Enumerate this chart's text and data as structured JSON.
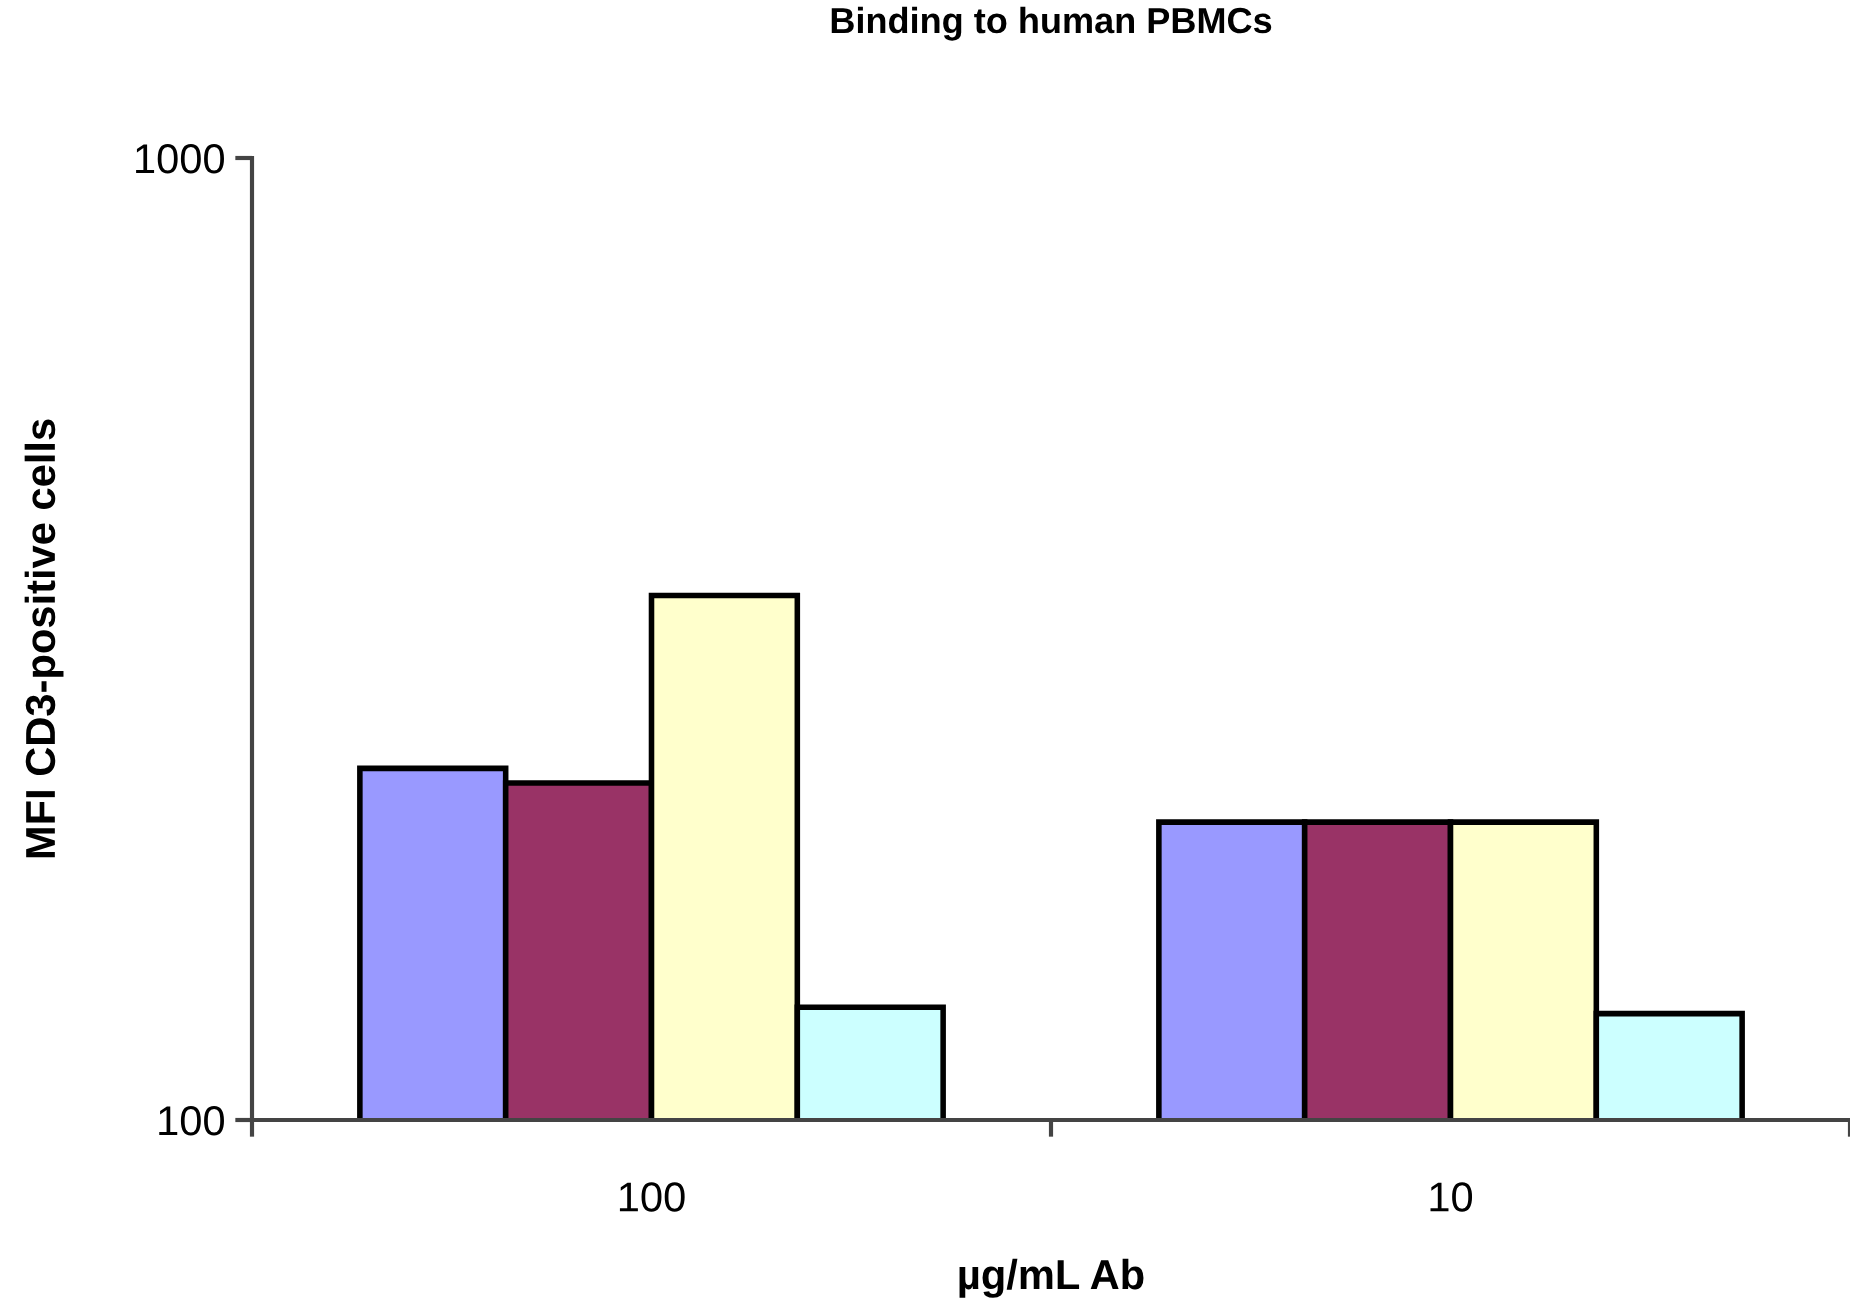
{
  "chart_data": {
    "type": "bar",
    "title": "Binding to human PBMCs",
    "xlabel": "µg/mL Ab",
    "ylabel": "MFI CD3-positive cells",
    "categories": [
      "100",
      "10"
    ],
    "series": [
      {
        "color": "#9999ff",
        "values": [
          232,
          204
        ]
      },
      {
        "color": "#993366",
        "values": [
          224,
          204
        ]
      },
      {
        "color": "#ffffcc",
        "values": [
          351,
          204
        ]
      },
      {
        "color": "#ccffff",
        "values": [
          131,
          129
        ]
      }
    ],
    "log": "y",
    "ylim": [
      100,
      1000
    ],
    "yticks": [
      100,
      1000
    ],
    "grid": false
  }
}
